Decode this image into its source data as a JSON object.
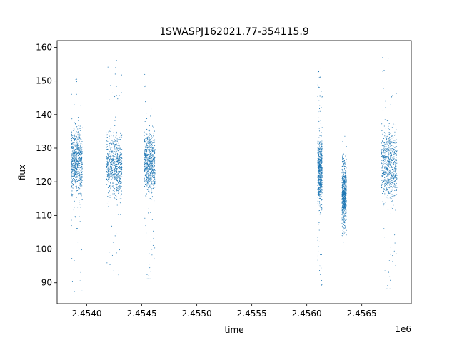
{
  "chart_data": {
    "type": "scatter",
    "title": "1SWASPJ162021.77-354115.9",
    "xlabel": "time",
    "ylabel": "flux",
    "x_offset_label": "1e6",
    "xlim": [
      2.45373,
      2.45695
    ],
    "ylim": [
      83.8,
      162.0
    ],
    "x_ticks": [
      2.454,
      2.4545,
      2.455,
      2.4555,
      2.456,
      2.4565
    ],
    "x_tick_labels": [
      "2.4540",
      "2.4545",
      "2.4550",
      "2.4555",
      "2.4560",
      "2.4565"
    ],
    "y_ticks": [
      90,
      100,
      110,
      120,
      130,
      140,
      150,
      160
    ],
    "y_tick_labels": [
      "90",
      "100",
      "110",
      "120",
      "130",
      "140",
      "150",
      "160"
    ],
    "grid": false,
    "marker_color": "#1f77b4",
    "clusters": [
      {
        "x_range": [
          2.45386,
          2.45396
        ],
        "y_core": [
          112,
          140
        ],
        "y_extreme": [
          87,
          152
        ]
      },
      {
        "x_range": [
          2.45418,
          2.45432
        ],
        "y_core": [
          112,
          138
        ],
        "y_extreme": [
          90,
          157
        ]
      },
      {
        "x_range": [
          2.45452,
          2.45462
        ],
        "y_core": [
          113,
          139
        ],
        "y_extreme": [
          91,
          152
        ]
      },
      {
        "x_range": [
          2.4561,
          2.45614
        ],
        "y_core": [
          110,
          137
        ],
        "y_extreme": [
          89,
          157
        ]
      },
      {
        "x_range": [
          2.45632,
          2.45636
        ],
        "y_core": [
          103,
          130
        ],
        "y_extreme": [
          100,
          134
        ]
      },
      {
        "x_range": [
          2.45668,
          2.45682
        ],
        "y_core": [
          110,
          140
        ],
        "y_extreme": [
          88,
          157
        ]
      }
    ]
  }
}
